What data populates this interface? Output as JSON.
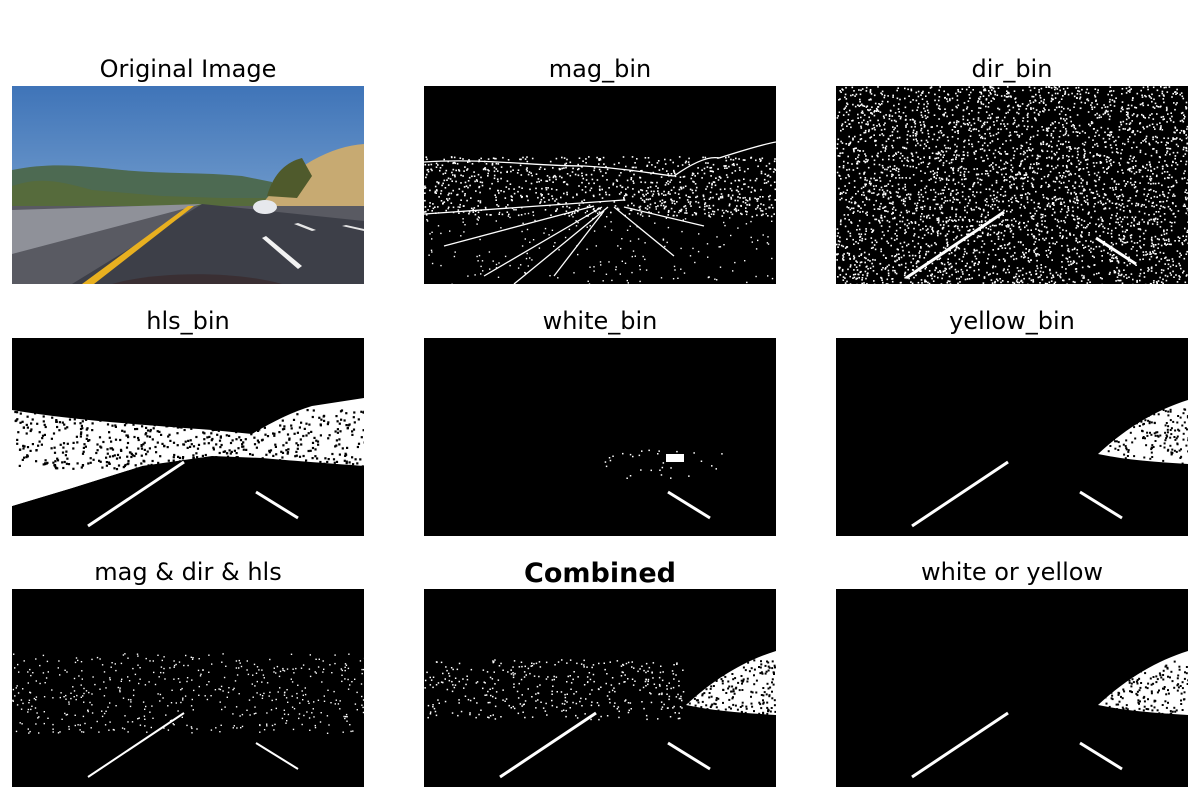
{
  "panels": [
    {
      "title": "Original Image"
    },
    {
      "title": "mag_bin"
    },
    {
      "title": "dir_bin"
    },
    {
      "title": "hls_bin"
    },
    {
      "title": "white_bin"
    },
    {
      "title": "yellow_bin"
    },
    {
      "title": "mag & dir & hls"
    },
    {
      "title": "Combined"
    },
    {
      "title": "white or yellow"
    }
  ]
}
